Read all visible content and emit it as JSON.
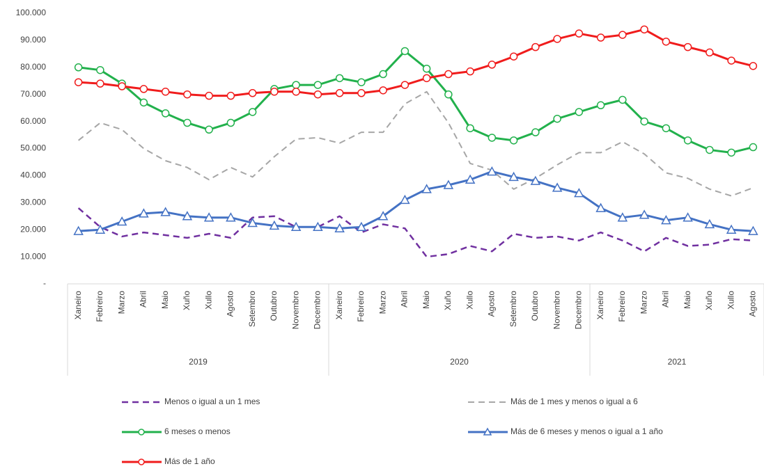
{
  "chart_data": {
    "type": "line",
    "category_groups": [
      {
        "label": "2019",
        "categories": [
          "Xaneiro",
          "Febreiro",
          "Marzo",
          "Abril",
          "Maio",
          "Xuño",
          "Xullo",
          "Agosto",
          "Setembro",
          "Outubro",
          "Novembro",
          "Decembro"
        ]
      },
      {
        "label": "2020",
        "categories": [
          "Xaneiro",
          "Febreiro",
          "Marzo",
          "Abril",
          "Maio",
          "Xuño",
          "Xullo",
          "Agosto",
          "Setembro",
          "Outubro",
          "Novembro",
          "Decembro"
        ]
      },
      {
        "label": "2021",
        "categories": [
          "Xaneiro",
          "Febreiro",
          "Marzo",
          "Abril",
          "Maio",
          "Xuño",
          "Xullo",
          "Agosto"
        ]
      }
    ],
    "ylim": [
      0,
      100000
    ],
    "yticks": [
      {
        "value": 0,
        "label": "-"
      },
      {
        "value": 10000,
        "label": "10.000"
      },
      {
        "value": 20000,
        "label": "20.000"
      },
      {
        "value": 30000,
        "label": "30.000"
      },
      {
        "value": 40000,
        "label": "40.000"
      },
      {
        "value": 50000,
        "label": "50.000"
      },
      {
        "value": 60000,
        "label": "60.000"
      },
      {
        "value": 70000,
        "label": "70.000"
      },
      {
        "value": 80000,
        "label": "80.000"
      },
      {
        "value": 90000,
        "label": "90.000"
      },
      {
        "value": 100000,
        "label": "100.000"
      }
    ],
    "grid": false,
    "series": [
      {
        "name": "Menos o igual a un 1 mes",
        "color": "#7030a0",
        "dash": true,
        "marker": "none",
        "width": 2.5,
        "values": [
          28000,
          21000,
          17500,
          19000,
          18000,
          17000,
          18500,
          17000,
          24500,
          25000,
          21000,
          21000,
          25000,
          19000,
          22000,
          20500,
          10000,
          11000,
          14000,
          12000,
          18500,
          17000,
          17500,
          16000,
          19000,
          16000,
          12000,
          17000,
          14000,
          14500,
          16500,
          16000
        ]
      },
      {
        "name": "Más de 1 mes y menos o igual a 6",
        "color": "#a6a6a6",
        "dash": true,
        "marker": "none",
        "width": 2,
        "values": [
          53000,
          59500,
          57000,
          50000,
          45500,
          43000,
          38500,
          43000,
          39500,
          47000,
          53500,
          54000,
          52000,
          56000,
          56000,
          66500,
          71000,
          59500,
          44500,
          42000,
          35000,
          39000,
          44000,
          48500,
          48500,
          52500,
          48000,
          41000,
          39000,
          35000,
          32500,
          35500
        ]
      },
      {
        "name": "6 meses o menos",
        "color": "#22b14c",
        "dash": false,
        "marker": "circle",
        "width": 3,
        "values": [
          80000,
          79000,
          74000,
          67000,
          63000,
          59500,
          57000,
          59500,
          63500,
          72000,
          73500,
          73500,
          76000,
          74500,
          77500,
          86000,
          79500,
          70000,
          57500,
          54000,
          53000,
          56000,
          61000,
          63500,
          66000,
          68000,
          60000,
          57500,
          53000,
          49500,
          48500,
          50500
        ]
      },
      {
        "name": "Más de 6 meses y menos o igual a 1 año",
        "color": "#4472c4",
        "dash": false,
        "marker": "triangle",
        "width": 3,
        "values": [
          19500,
          20000,
          23000,
          26000,
          26500,
          25000,
          24500,
          24500,
          22500,
          21500,
          21000,
          21000,
          20500,
          21000,
          25000,
          31000,
          35000,
          36500,
          38500,
          41500,
          39500,
          38000,
          35500,
          33500,
          28000,
          24500,
          25500,
          23500,
          24500,
          22000,
          20000,
          19500
        ]
      },
      {
        "name": "Más de 1 año",
        "color": "#f01c1c",
        "dash": false,
        "marker": "circle",
        "width": 3,
        "values": [
          74500,
          74000,
          73000,
          72000,
          71000,
          70000,
          69500,
          69500,
          70500,
          71000,
          71000,
          70000,
          70500,
          70500,
          71500,
          73500,
          76000,
          77500,
          78500,
          81000,
          84000,
          87500,
          90500,
          92500,
          91000,
          92000,
          94000,
          89500,
          87500,
          85500,
          82500,
          80500
        ]
      }
    ]
  }
}
